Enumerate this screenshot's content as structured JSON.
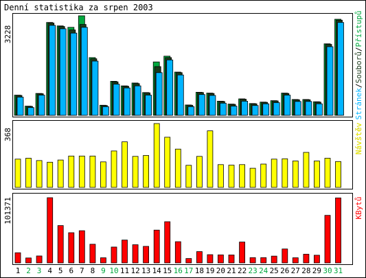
{
  "chart_data": [
    {
      "type": "bar",
      "title": "Denní statistika za srpen 2003",
      "ylabel": "Stránek/Souborů/Přístupů",
      "ylabel_parts": [
        "Stránek",
        "/",
        "Souborů",
        "/",
        "Přístupů"
      ],
      "y_tick": "3228",
      "categories": [
        "1",
        "2",
        "3",
        "4",
        "5",
        "6",
        "7",
        "8",
        "9",
        "10",
        "11",
        "12",
        "13",
        "14",
        "15",
        "16",
        "17",
        "18",
        "19",
        "20",
        "21",
        "22",
        "23",
        "24",
        "25",
        "26",
        "27",
        "28",
        "29",
        "30",
        "31"
      ],
      "series": [
        {
          "name": "Přístupů",
          "color": "#00a83e",
          "values": [
            700,
            320,
            760,
            3220,
            3100,
            3050,
            3450,
            2000,
            350,
            1180,
            1020,
            1120,
            790,
            1850,
            2050,
            1500,
            360,
            800,
            770,
            490,
            390,
            570,
            410,
            460,
            510,
            770,
            550,
            550,
            470,
            2480,
            3330
          ]
        },
        {
          "name": "Souborů",
          "color": "#1b3a1b",
          "values": [
            690,
            310,
            750,
            3200,
            3080,
            2960,
            3150,
            1960,
            340,
            1160,
            1010,
            1100,
            780,
            1690,
            2000,
            1480,
            350,
            790,
            760,
            480,
            380,
            560,
            400,
            450,
            500,
            760,
            540,
            540,
            460,
            2460,
            3300
          ]
        },
        {
          "name": "Stránek",
          "color": "#00b4ff",
          "values": [
            630,
            270,
            700,
            3120,
            3000,
            2850,
            3050,
            1880,
            300,
            1080,
            950,
            1020,
            700,
            1480,
            1920,
            1400,
            300,
            720,
            690,
            420,
            320,
            490,
            340,
            400,
            440,
            700,
            480,
            480,
            400,
            2380,
            3220
          ]
        }
      ]
    },
    {
      "type": "bar",
      "ylabel": "Návštěv",
      "y_tick": "368",
      "series": [
        {
          "name": "Návštěv",
          "color": "#ffff00",
          "values": [
            155,
            160,
            147,
            138,
            150,
            172,
            172,
            172,
            140,
            200,
            250,
            170,
            175,
            350,
            275,
            210,
            121,
            170,
            310,
            125,
            122,
            125,
            105,
            128,
            155,
            157,
            145,
            192,
            145,
            160,
            142
          ]
        }
      ]
    },
    {
      "type": "bar",
      "ylabel": "KBytů",
      "y_tick": "101371",
      "series": [
        {
          "name": "KBytů",
          "color": "#ff0000",
          "values": [
            15800,
            7700,
            10800,
            101371,
            58000,
            47000,
            50000,
            29000,
            8000,
            24600,
            35500,
            28300,
            25700,
            51000,
            64000,
            33000,
            6800,
            17600,
            12800,
            12500,
            12400,
            32400,
            8200,
            8200,
            10600,
            21700,
            8000,
            13500,
            12000,
            74000,
            101000
          ]
        }
      ]
    }
  ],
  "day_label_colors": {
    "weekday": "#000000",
    "weekend": "#00a83e"
  },
  "weekend_days": [
    "2",
    "3",
    "9",
    "10",
    "16",
    "17",
    "23",
    "24",
    "30",
    "31"
  ]
}
